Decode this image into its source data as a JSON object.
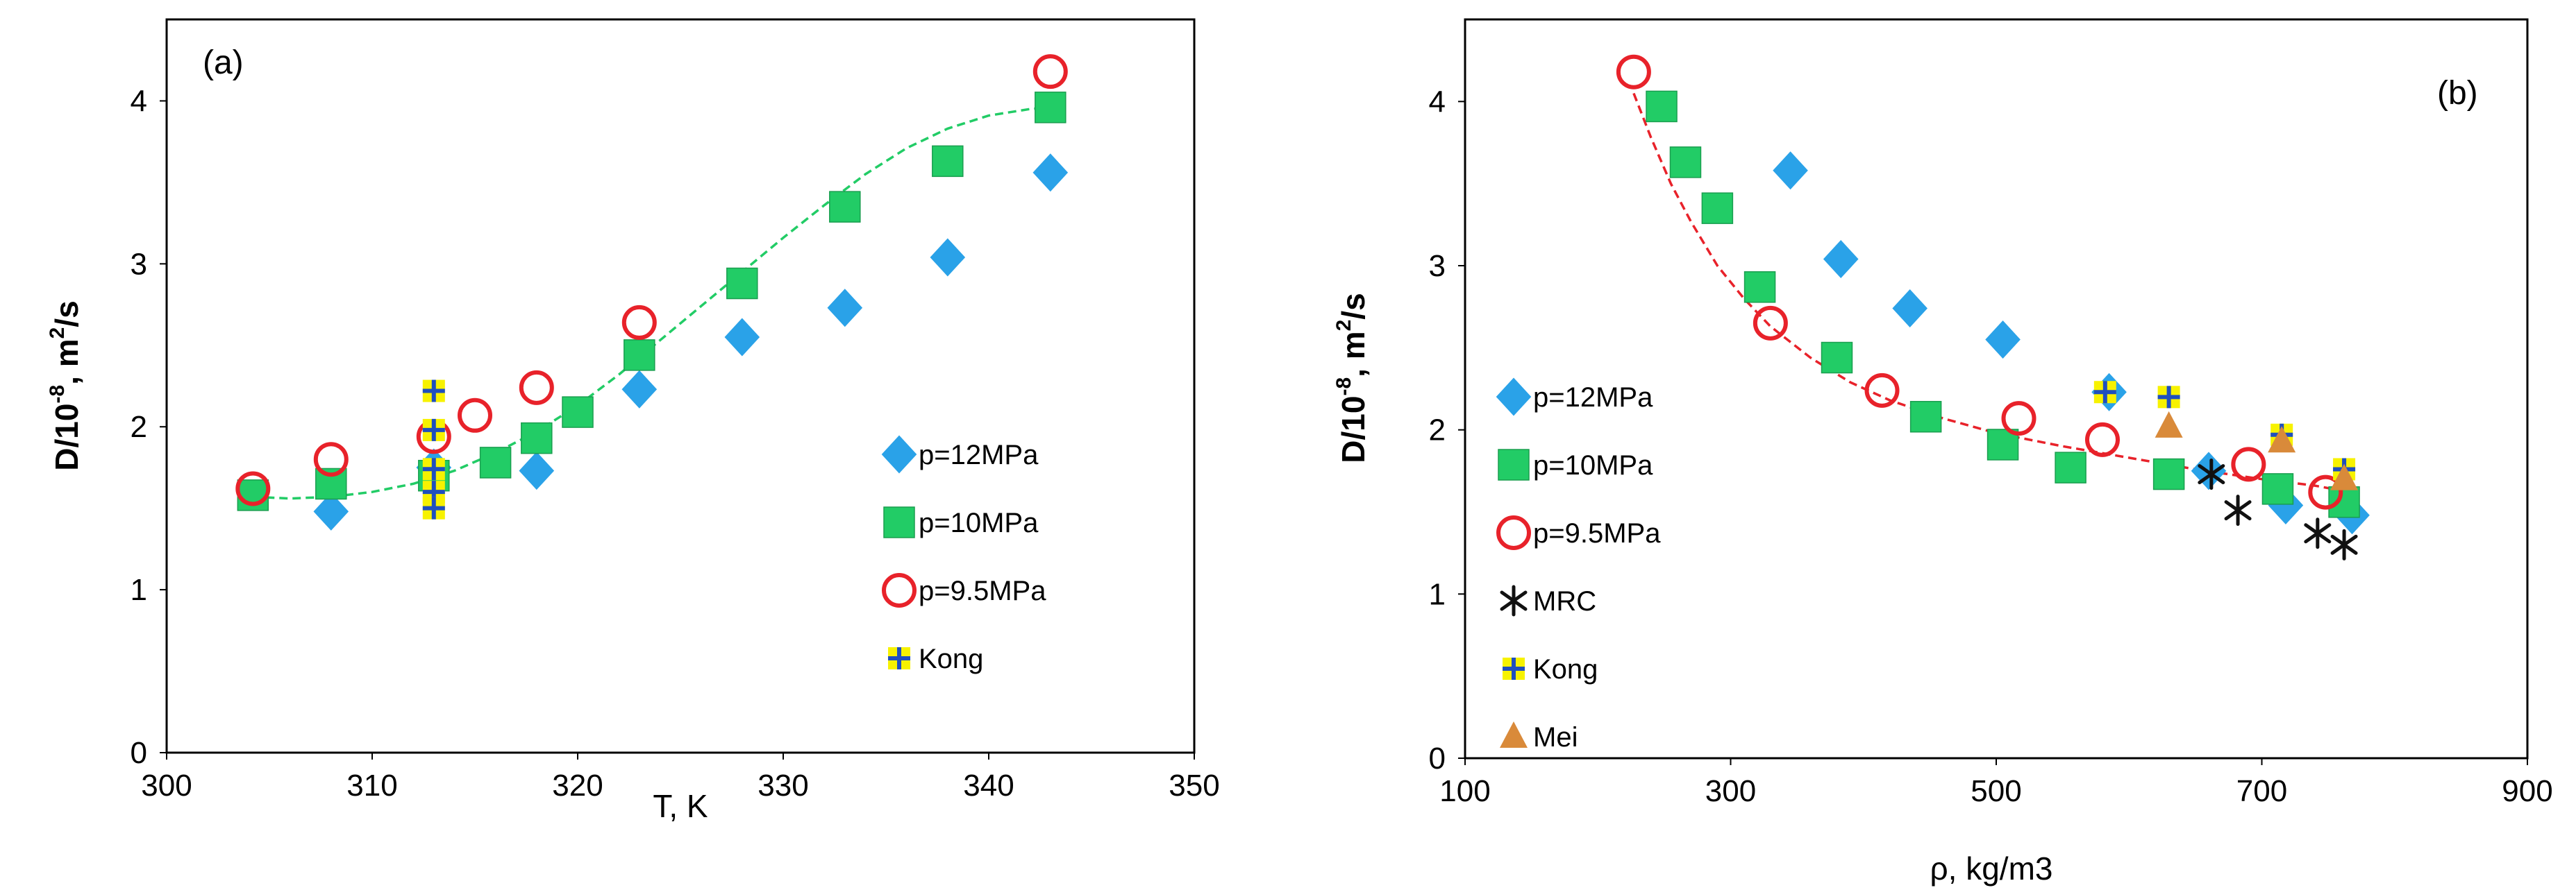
{
  "chart_data": [
    {
      "type": "scatter",
      "tag": "(a)",
      "xlabel": "T, K",
      "ylabel_main": "D/10",
      "ylabel_exp": "-8",
      "ylabel_rest": ", m",
      "ylabel_sq": "2",
      "ylabel_end": "/s",
      "xlim": [
        300,
        350
      ],
      "ylim": [
        0,
        4.5
      ],
      "xticks": [
        "300",
        "310",
        "320",
        "330",
        "340",
        "350"
      ],
      "yticks": [
        "0",
        "1",
        "2",
        "3",
        "4"
      ],
      "legend_position": "right",
      "series": [
        {
          "name": "p=12MPa",
          "marker": "diamond",
          "color": "#2aa2e8",
          "points": [
            [
              308,
              1.48
            ],
            [
              313,
              1.75
            ],
            [
              318,
              1.73
            ],
            [
              323,
              2.23
            ],
            [
              328,
              2.55
            ],
            [
              333,
              2.73
            ],
            [
              338,
              3.04
            ],
            [
              343,
              3.56
            ]
          ]
        },
        {
          "name": "p=10MPa",
          "marker": "square",
          "color": "#22cc66",
          "points": [
            [
              304.2,
              1.58
            ],
            [
              308,
              1.65
            ],
            [
              313,
              1.7
            ],
            [
              316,
              1.78
            ],
            [
              318,
              1.93
            ],
            [
              320,
              2.09
            ],
            [
              323,
              2.44
            ],
            [
              328,
              2.88
            ],
            [
              333,
              3.35
            ],
            [
              338,
              3.63
            ],
            [
              343,
              3.96
            ]
          ]
        },
        {
          "name": "p=9.5MPa",
          "marker": "circle",
          "color": "#e8222a",
          "points": [
            [
              304.2,
              1.62
            ],
            [
              308,
              1.8
            ],
            [
              313,
              1.94
            ],
            [
              315,
              2.07
            ],
            [
              318,
              2.24
            ],
            [
              323,
              2.64
            ],
            [
              343,
              4.18
            ]
          ]
        },
        {
          "name": "Kong",
          "marker": "plus",
          "color": "#f7f200",
          "edge": "#1f4fbf",
          "points": [
            [
              313,
              2.22
            ],
            [
              313,
              1.98
            ],
            [
              313,
              1.74
            ],
            [
              313,
              1.6
            ],
            [
              313,
              1.5
            ]
          ]
        }
      ],
      "fit": {
        "color": "#22cc66",
        "points": [
          [
            304.2,
            1.57
          ],
          [
            306,
            1.56
          ],
          [
            308,
            1.57
          ],
          [
            310,
            1.6
          ],
          [
            312,
            1.65
          ],
          [
            314,
            1.73
          ],
          [
            316,
            1.84
          ],
          [
            318,
            1.97
          ],
          [
            320,
            2.13
          ],
          [
            322,
            2.32
          ],
          [
            324,
            2.53
          ],
          [
            326,
            2.74
          ],
          [
            328,
            2.95
          ],
          [
            330,
            3.16
          ],
          [
            332,
            3.36
          ],
          [
            334,
            3.55
          ],
          [
            336,
            3.71
          ],
          [
            338,
            3.83
          ],
          [
            340,
            3.91
          ],
          [
            342,
            3.95
          ],
          [
            343,
            3.96
          ]
        ]
      }
    },
    {
      "type": "scatter",
      "tag": "(b)",
      "xlabel": "ρ, kg/m3",
      "ylabel_main": "D/10",
      "ylabel_exp": "-8",
      "ylabel_rest": ", m",
      "ylabel_sq": "2",
      "ylabel_end": "/s",
      "xlim": [
        100,
        900
      ],
      "ylim": [
        0,
        4.5
      ],
      "xticks": [
        "100",
        "300",
        "500",
        "700",
        "900"
      ],
      "yticks": [
        "0",
        "1",
        "2",
        "3",
        "4"
      ],
      "legend_position": "left",
      "series": [
        {
          "name": "p=12MPa",
          "marker": "diamond",
          "color": "#2aa2e8",
          "points": [
            [
              345,
              3.58
            ],
            [
              383,
              3.04
            ],
            [
              435,
              2.74
            ],
            [
              505,
              2.55
            ],
            [
              585,
              2.23
            ],
            [
              660,
              1.75
            ],
            [
              718,
              1.54
            ],
            [
              768,
              1.48
            ]
          ]
        },
        {
          "name": "p=10MPa",
          "marker": "square",
          "color": "#22cc66",
          "points": [
            [
              248,
              3.97
            ],
            [
              266,
              3.63
            ],
            [
              290,
              3.35
            ],
            [
              322,
              2.87
            ],
            [
              380,
              2.44
            ],
            [
              447,
              2.08
            ],
            [
              505,
              1.91
            ],
            [
              556,
              1.77
            ],
            [
              630,
              1.73
            ],
            [
              712,
              1.64
            ],
            [
              762,
              1.56
            ]
          ]
        },
        {
          "name": "p=9.5MPa",
          "marker": "circle",
          "color": "#e8222a",
          "points": [
            [
              227,
              4.18
            ],
            [
              330,
              2.65
            ],
            [
              414,
              2.24
            ],
            [
              517,
              2.07
            ],
            [
              580,
              1.94
            ],
            [
              690,
              1.79
            ],
            [
              748,
              1.62
            ]
          ]
        },
        {
          "name": "MRC",
          "marker": "asterisk",
          "color": "#111111",
          "points": [
            [
              662,
              1.73
            ],
            [
              682,
              1.51
            ],
            [
              742,
              1.37
            ],
            [
              762,
              1.3
            ]
          ]
        },
        {
          "name": "Kong",
          "marker": "plus",
          "color": "#f7f200",
          "edge": "#1f4fbf",
          "points": [
            [
              582,
              2.23
            ],
            [
              630,
              2.2
            ],
            [
              715,
              1.97
            ],
            [
              762,
              1.76
            ]
          ]
        },
        {
          "name": "Mei",
          "marker": "triangle",
          "color": "#d98a3a",
          "points": [
            [
              630,
              2.02
            ],
            [
              715,
              1.93
            ],
            [
              762,
              1.7
            ]
          ]
        }
      ],
      "fit": {
        "color": "#e8222a",
        "points": [
          [
            227,
            4.05
          ],
          [
            240,
            3.78
          ],
          [
            255,
            3.5
          ],
          [
            270,
            3.27
          ],
          [
            290,
            3.0
          ],
          [
            310,
            2.8
          ],
          [
            330,
            2.63
          ],
          [
            360,
            2.44
          ],
          [
            390,
            2.29
          ],
          [
            420,
            2.18
          ],
          [
            460,
            2.07
          ],
          [
            500,
            1.98
          ],
          [
            550,
            1.9
          ],
          [
            600,
            1.83
          ],
          [
            650,
            1.76
          ],
          [
            700,
            1.7
          ],
          [
            740,
            1.66
          ],
          [
            760,
            1.63
          ]
        ]
      }
    }
  ]
}
